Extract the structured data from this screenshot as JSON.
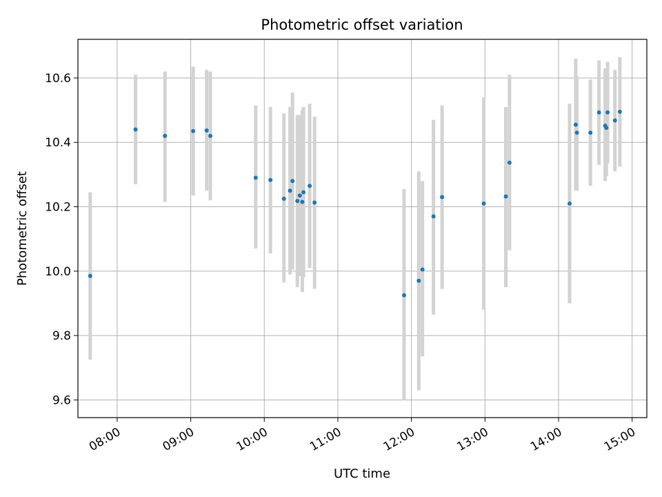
{
  "chart_data": {
    "type": "scatter",
    "title": "Photometric offset variation",
    "xlabel": "UTC time",
    "ylabel": "Photometric offset",
    "x_tick_labels": [
      "08:00",
      "09:00",
      "10:00",
      "11:00",
      "12:00",
      "13:00",
      "14:00",
      "15:00"
    ],
    "y_tick_labels": [
      "9.6",
      "9.8",
      "10.0",
      "10.2",
      "10.4",
      "10.6"
    ],
    "xlim": [
      "07:28",
      "15:12"
    ],
    "ylim": [
      9.545,
      10.72
    ],
    "grid": true,
    "colors": {
      "point": "#1f77b4",
      "errorbar": "#d3d3d3",
      "grid": "#b0b0b0"
    },
    "series": [
      {
        "points": [
          {
            "x": "07:38",
            "y": 9.985,
            "ylow": 9.725,
            "yhigh": 10.245
          },
          {
            "x": "08:15",
            "y": 10.44,
            "ylow": 10.27,
            "yhigh": 10.61
          },
          {
            "x": "08:39",
            "y": 10.42,
            "ylow": 10.215,
            "yhigh": 10.62
          },
          {
            "x": "09:02",
            "y": 10.435,
            "ylow": 10.235,
            "yhigh": 10.635
          },
          {
            "x": "09:13",
            "y": 10.437,
            "ylow": 10.25,
            "yhigh": 10.625
          },
          {
            "x": "09:16",
            "y": 10.42,
            "ylow": 10.22,
            "yhigh": 10.62
          },
          {
            "x": "09:53",
            "y": 10.29,
            "ylow": 10.07,
            "yhigh": 10.515
          },
          {
            "x": "10:05",
            "y": 10.283,
            "ylow": 10.055,
            "yhigh": 10.51
          },
          {
            "x": "10:16",
            "y": 10.225,
            "ylow": 9.965,
            "yhigh": 10.49
          },
          {
            "x": "10:21",
            "y": 10.25,
            "ylow": 9.99,
            "yhigh": 10.51
          },
          {
            "x": "10:23",
            "y": 10.28,
            "ylow": 10.005,
            "yhigh": 10.555
          },
          {
            "x": "10:27",
            "y": 10.218,
            "ylow": 9.95,
            "yhigh": 10.485
          },
          {
            "x": "10:29",
            "y": 10.235,
            "ylow": 9.985,
            "yhigh": 10.485
          },
          {
            "x": "10:31",
            "y": 10.215,
            "ylow": 9.935,
            "yhigh": 10.5
          },
          {
            "x": "10:32",
            "y": 10.245,
            "ylow": 9.98,
            "yhigh": 10.51
          },
          {
            "x": "10:37",
            "y": 10.265,
            "ylow": 10.01,
            "yhigh": 10.52
          },
          {
            "x": "10:41",
            "y": 10.213,
            "ylow": 9.945,
            "yhigh": 10.48
          },
          {
            "x": "11:54",
            "y": 9.925,
            "ylow": 9.6,
            "yhigh": 10.255
          },
          {
            "x": "12:06",
            "y": 9.97,
            "ylow": 9.63,
            "yhigh": 10.31
          },
          {
            "x": "12:09",
            "y": 10.005,
            "ylow": 9.735,
            "yhigh": 10.28
          },
          {
            "x": "12:18",
            "y": 10.17,
            "ylow": 9.865,
            "yhigh": 10.47
          },
          {
            "x": "12:25",
            "y": 10.23,
            "ylow": 9.945,
            "yhigh": 10.515
          },
          {
            "x": "12:59",
            "y": 10.21,
            "ylow": 9.88,
            "yhigh": 10.54
          },
          {
            "x": "13:17",
            "y": 10.232,
            "ylow": 9.95,
            "yhigh": 10.51
          },
          {
            "x": "13:20",
            "y": 10.337,
            "ylow": 10.065,
            "yhigh": 10.61
          },
          {
            "x": "14:09",
            "y": 10.21,
            "ylow": 9.9,
            "yhigh": 10.52
          },
          {
            "x": "14:14",
            "y": 10.455,
            "ylow": 10.25,
            "yhigh": 10.66
          },
          {
            "x": "14:15",
            "y": 10.43,
            "ylow": 10.25,
            "yhigh": 10.605
          },
          {
            "x": "14:26",
            "y": 10.43,
            "ylow": 10.265,
            "yhigh": 10.595
          },
          {
            "x": "14:33",
            "y": 10.493,
            "ylow": 10.33,
            "yhigh": 10.655
          },
          {
            "x": "14:38",
            "y": 10.452,
            "ylow": 10.28,
            "yhigh": 10.63
          },
          {
            "x": "14:39",
            "y": 10.445,
            "ylow": 10.295,
            "yhigh": 10.6
          },
          {
            "x": "14:40",
            "y": 10.493,
            "ylow": 10.335,
            "yhigh": 10.65
          },
          {
            "x": "14:46",
            "y": 10.468,
            "ylow": 10.31,
            "yhigh": 10.625
          },
          {
            "x": "14:50",
            "y": 10.495,
            "ylow": 10.325,
            "yhigh": 10.665
          }
        ]
      }
    ]
  }
}
